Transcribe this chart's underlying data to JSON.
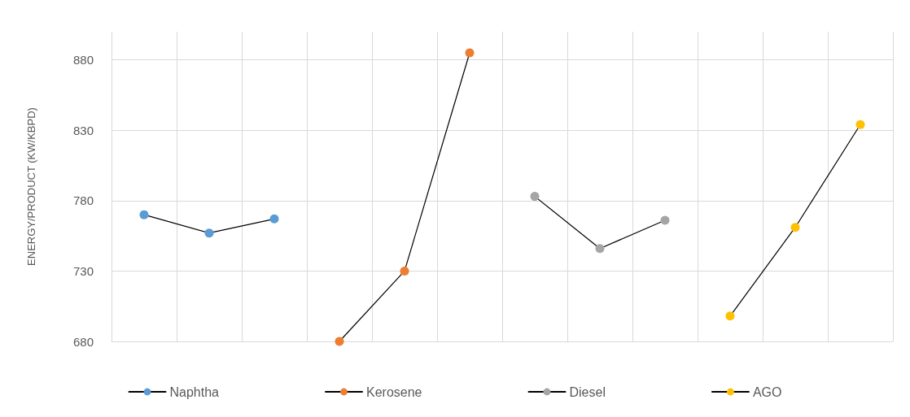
{
  "chart_data": {
    "type": "line",
    "ylabel": "ENERGY/PRODUCT (KW/KBPD)",
    "categories": [
      null,
      null,
      null,
      null,
      null,
      null,
      null,
      null,
      null,
      null,
      null,
      null
    ],
    "series": [
      {
        "name": "Naphtha",
        "color": "#5b9bd5",
        "values": [
          770,
          757,
          767,
          null,
          null,
          null,
          null,
          null,
          null,
          null,
          null,
          null
        ]
      },
      {
        "name": "Kerosene",
        "color": "#ed7d31",
        "values": [
          null,
          null,
          null,
          680,
          730,
          885,
          null,
          null,
          null,
          null,
          null,
          null
        ]
      },
      {
        "name": "Diesel",
        "color": "#a5a5a5",
        "values": [
          null,
          null,
          null,
          null,
          null,
          null,
          783,
          746,
          766,
          null,
          null,
          null
        ]
      },
      {
        "name": "AGO",
        "color": "#ffc000",
        "values": [
          null,
          null,
          null,
          null,
          null,
          null,
          null,
          null,
          null,
          698,
          761,
          834
        ]
      }
    ],
    "ylim": [
      680,
      900
    ],
    "yticks": [
      680,
      730,
      780,
      830,
      880
    ],
    "grid": true,
    "legend": "bottom",
    "marker": "circle",
    "line_style": "solid"
  }
}
